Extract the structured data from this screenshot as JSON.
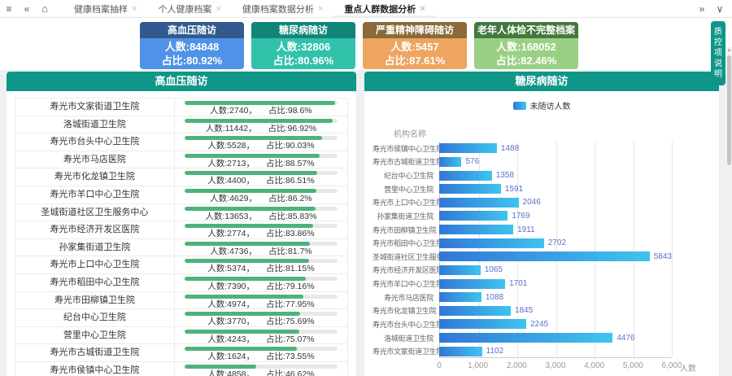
{
  "icons": {
    "menu": "≡",
    "collapse_left": "«",
    "home": "⌂",
    "expand_right": "»",
    "chevron_down": "∨",
    "tab_close": "×",
    "scroll_up": "▲"
  },
  "topbar": {
    "tabs": [
      {
        "label": "健康档案抽样",
        "active": false
      },
      {
        "label": "个人健康档案",
        "active": false
      },
      {
        "label": "健康档案数据分析",
        "active": false
      },
      {
        "label": "重点人群数据分析",
        "active": true
      }
    ]
  },
  "stat_cards": [
    {
      "title": "高血压随访",
      "count_text": "人数:84848",
      "ratio_text": "占比:80.92%",
      "header_color": "#325a8e",
      "body_color": "#4f93e8"
    },
    {
      "title": "糖尿病随访",
      "count_text": "人数:32806",
      "ratio_text": "占比:80.96%",
      "header_color": "#108578",
      "body_color": "#32c2ab"
    },
    {
      "title": "严重精神障碍随访",
      "count_text": "人数:5457",
      "ratio_text": "占比:87.61%",
      "header_color": "#8a6a3a",
      "body_color": "#eda55f"
    },
    {
      "title": "老年人体检不完整档案",
      "count_text": "人数:168052",
      "ratio_text": "占比:82.46%",
      "header_color": "#43793c",
      "body_color": "#9ad084"
    }
  ],
  "left_panel": {
    "title": "高血压随访",
    "bar_color": "#4db37a",
    "rows": [
      {
        "name": "寿光市文家街道卫生院",
        "count_text": "人数:2740，",
        "ratio_text": "占比:98.6%",
        "percent": 98.6
      },
      {
        "name": "洛城街道卫生院",
        "count_text": "人数:11442，",
        "ratio_text": "占比:96.92%",
        "percent": 96.92
      },
      {
        "name": "寿光市台头中心卫生院",
        "count_text": "人数:5528，",
        "ratio_text": "占比:90.03%",
        "percent": 90.03
      },
      {
        "name": "寿光市马店医院",
        "count_text": "人数:2713，",
        "ratio_text": "占比:88.57%",
        "percent": 88.57
      },
      {
        "name": "寿光市化龙镇卫生院",
        "count_text": "人数:4400，",
        "ratio_text": "占比:86.51%",
        "percent": 86.51
      },
      {
        "name": "寿光市羊口中心卫生院",
        "count_text": "人数:4629，",
        "ratio_text": "占比:86.2%",
        "percent": 86.2
      },
      {
        "name": "圣城街道社区卫生服务中心",
        "count_text": "人数:13653，",
        "ratio_text": "占比:85.83%",
        "percent": 85.83
      },
      {
        "name": "寿光市经济开发区医院",
        "count_text": "人数:2774，",
        "ratio_text": "占比:83.86%",
        "percent": 83.86
      },
      {
        "name": "孙家集街道卫生院",
        "count_text": "人数:4736，",
        "ratio_text": "占比:81.7%",
        "percent": 81.7
      },
      {
        "name": "寿光市上口中心卫生院",
        "count_text": "人数:5374，",
        "ratio_text": "占比:81.15%",
        "percent": 81.15
      },
      {
        "name": "寿光市稻田中心卫生院",
        "count_text": "人数:7390，",
        "ratio_text": "占比:79.16%",
        "percent": 79.16
      },
      {
        "name": "寿光市田柳镇卫生院",
        "count_text": "人数:4974，",
        "ratio_text": "占比:77.95%",
        "percent": 77.95
      },
      {
        "name": "纪台中心卫生院",
        "count_text": "人数:3770，",
        "ratio_text": "占比:75.69%",
        "percent": 75.69
      },
      {
        "name": "营里中心卫生院",
        "count_text": "人数:4243，",
        "ratio_text": "占比:75.07%",
        "percent": 75.07
      },
      {
        "name": "寿光市古城街道卫生院",
        "count_text": "人数:1624，",
        "ratio_text": "占比:73.55%",
        "percent": 73.55
      },
      {
        "name": "寿光市侯镇中心卫生院",
        "count_text": "人数:4858，",
        "ratio_text": "占比:46.62%",
        "percent": 46.62
      }
    ]
  },
  "right_panel": {
    "title": "糖尿病随访",
    "chart_data": {
      "type": "bar",
      "orientation": "horizontal",
      "title": "糖尿病随访",
      "legend": [
        "未随访人数"
      ],
      "legend_position": "top",
      "categories": [
        "寿光市侯镇中心卫生院",
        "寿光市古城街道卫生院",
        "纪台中心卫生院",
        "营里中心卫生院",
        "寿光市上口中心卫生院",
        "孙家集街道卫生院",
        "寿光市田柳镇卫生院",
        "寿光市稻田中心卫生院",
        "圣城街道社区卫生服务中心",
        "寿光市经济开发区医院",
        "寿光市羊口中心卫生院",
        "寿光市马店医院",
        "寿光市化龙镇卫生院",
        "寿光市台头中心卫生院",
        "洛城街道卫生院",
        "寿光市文家街道卫生院"
      ],
      "values": [
        1488,
        576,
        1358,
        1591,
        2046,
        1769,
        1911,
        2702,
        5843,
        1065,
        1701,
        1088,
        1845,
        2245,
        4476,
        1102
      ],
      "xlabel": "人数",
      "ylabel": "机构名称",
      "xlim": [
        0,
        6000
      ],
      "xticks": [
        "0",
        "1,000",
        "2,000",
        "3,000",
        "4,000",
        "5,000",
        "6,000"
      ],
      "grid": true,
      "bar_gradient": [
        "#3277d6",
        "#3fc4ee"
      ],
      "value_label_color": "#5b6fc8"
    }
  },
  "side": {
    "qc_button": "质控项说明"
  },
  "colors": {
    "panel_header": "#0f9689",
    "progress_green": "#4db37a"
  }
}
